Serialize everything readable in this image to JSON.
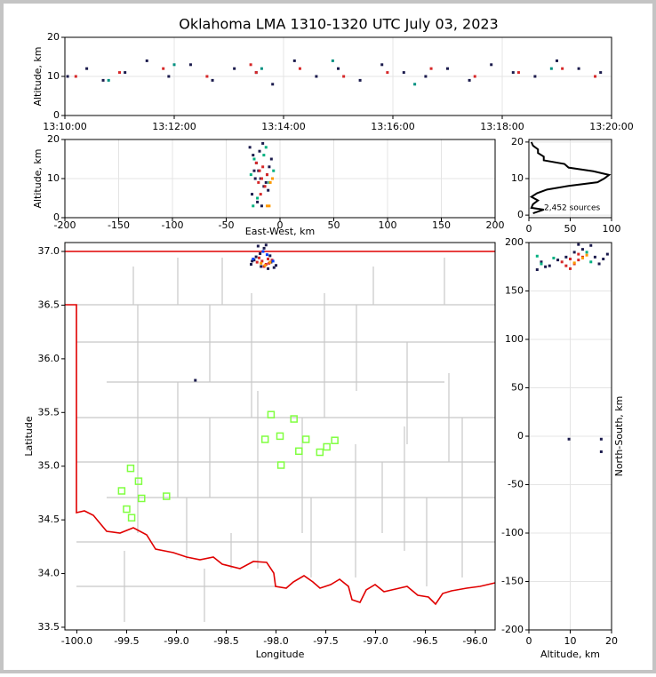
{
  "title": "Oklahoma LMA 1310-1320 UTC July 03, 2023",
  "chart_data": [
    {
      "type": "scatter",
      "ylabel": "Altitude, km",
      "xlim": [
        10,
        20
      ],
      "ylim": [
        0,
        20
      ],
      "grid": true,
      "xticks": [
        {
          "value": 10,
          "label": "13:10:00"
        },
        {
          "value": 12,
          "label": "13:12:00"
        },
        {
          "value": 14,
          "label": "13:14:00"
        },
        {
          "value": 16,
          "label": "13:16:00"
        },
        {
          "value": 18,
          "label": "13:18:00"
        },
        {
          "value": 20,
          "label": "13:20:00"
        }
      ],
      "yticks": [
        0,
        10,
        20
      ],
      "series": [
        {
          "color": "#1b1b4d",
          "x": [
            10.05,
            10.4,
            10.7,
            11.1,
            11.5,
            11.9,
            12.3,
            12.7,
            13.1,
            13.5,
            13.8,
            14.2,
            14.6,
            15.0,
            15.4,
            15.8,
            16.2,
            16.6,
            17.0,
            17.4,
            17.8,
            18.2,
            18.6,
            19.0,
            19.4,
            19.8
          ],
          "y": [
            10,
            12,
            9,
            11,
            14,
            10,
            13,
            9,
            12,
            11,
            8,
            14,
            10,
            12,
            9,
            13,
            11,
            10,
            12,
            9,
            13,
            11,
            10,
            14,
            12,
            11
          ]
        },
        {
          "color": "#d62728",
          "x": [
            10.2,
            11.0,
            11.8,
            12.6,
            13.4,
            13.5,
            14.3,
            15.1,
            15.9,
            16.7,
            17.5,
            18.3,
            19.1,
            19.7
          ],
          "y": [
            10,
            11,
            12,
            10,
            13,
            11,
            12,
            10,
            11,
            12,
            10,
            11,
            12,
            10
          ]
        },
        {
          "color": "#009080",
          "x": [
            10.8,
            12.0,
            13.6,
            14.9,
            16.4,
            18.9
          ],
          "y": [
            9,
            13,
            12,
            14,
            8,
            12
          ]
        }
      ]
    },
    {
      "type": "scatter",
      "xlabel": "East-West, km",
      "ylabel": "Altitude, km",
      "xlim": [
        -200,
        200
      ],
      "ylim": [
        0,
        20
      ],
      "grid": true,
      "xticks": [
        -200,
        -150,
        -100,
        -50,
        0,
        50,
        100,
        150,
        200
      ],
      "yticks": [
        0,
        10,
        20
      ],
      "series": [
        {
          "color": "#1b1b4d",
          "x": [
            -28,
            -25,
            -22,
            -20,
            -18,
            -15,
            -12,
            -10,
            -8,
            -26,
            -21,
            -17,
            -13,
            -24,
            -19,
            -16,
            -11,
            -23
          ],
          "y": [
            18,
            16,
            14,
            12,
            10,
            8,
            11,
            13,
            15,
            6,
            4,
            3,
            9,
            12,
            17,
            19,
            7,
            10
          ]
        },
        {
          "color": "#d62728",
          "x": [
            -22,
            -19,
            -17,
            -14,
            -12,
            -20,
            -16,
            -18
          ],
          "y": [
            14,
            12,
            10,
            8,
            11,
            9,
            13,
            6
          ]
        },
        {
          "color": "#00b080",
          "x": [
            -27,
            -24,
            -21,
            -15,
            -10,
            -6,
            -25,
            -13
          ],
          "y": [
            11,
            15,
            5,
            16,
            9,
            12,
            3,
            18
          ]
        },
        {
          "color": "#ff9900",
          "x": [
            -12,
            -9,
            -7,
            -10
          ],
          "y": [
            3,
            9,
            10,
            3
          ]
        }
      ]
    },
    {
      "type": "line",
      "annotation": "2,452 sources",
      "xlim": [
        0,
        100
      ],
      "ylim": [
        -0.7,
        20.7
      ],
      "grid": true,
      "xticks": [
        0,
        50,
        100
      ],
      "yticks": [
        0,
        10,
        20
      ],
      "series": [
        {
          "color": "#000000",
          "x": [
            5,
            18,
            3,
            5,
            11,
            3,
            10,
            22,
            48,
            83,
            91,
            97,
            78,
            48,
            43,
            18,
            18,
            11,
            11,
            5,
            3
          ],
          "y": [
            0.5,
            1.5,
            2,
            3,
            4,
            5,
            6,
            7,
            8,
            9,
            10,
            11,
            12,
            13,
            14,
            15,
            16,
            17,
            18,
            19,
            20
          ]
        }
      ]
    },
    {
      "type": "scatter",
      "xlabel": "Longitude",
      "ylabel": "Latitude",
      "xlim": [
        -100.12,
        -95.8
      ],
      "ylim": [
        33.475,
        37.083
      ],
      "grid": false,
      "xticks": [
        {
          "value": -100,
          "label": "-100.0"
        },
        -99.5,
        {
          "value": -99,
          "label": "-99.0"
        },
        -98.5,
        {
          "value": -98,
          "label": "-98.0"
        },
        -97.5,
        {
          "value": -97,
          "label": "-97.0"
        },
        -96.5,
        {
          "value": -96,
          "label": "-96.0"
        }
      ],
      "yticks": [
        33.5,
        {
          "value": 34,
          "label": "34.0"
        },
        34.5,
        {
          "value": 35,
          "label": "35.0"
        },
        35.5,
        {
          "value": 36,
          "label": "36.0"
        },
        36.5,
        {
          "value": 37,
          "label": "37.0"
        }
      ],
      "series": [
        {
          "color": "#1b1b4d",
          "x": [
            -98.25,
            -98.22,
            -98.18,
            -98.15,
            -98.12,
            -98.08,
            -98.05,
            -98.02,
            -98.2,
            -98.1,
            -98.0,
            -98.16,
            -98.06,
            -98.24,
            -98.81
          ],
          "y": [
            36.88,
            36.92,
            37.05,
            36.86,
            37.03,
            36.84,
            36.9,
            36.85,
            36.95,
            37.06,
            36.87,
            36.98,
            36.96,
            36.91,
            35.8
          ]
        },
        {
          "color": "#d62728",
          "x": [
            -98.19,
            -98.14,
            -98.1,
            -98.07,
            -98.04,
            -98.17,
            -98.12,
            -98.08
          ],
          "y": [
            36.9,
            36.91,
            36.88,
            36.89,
            36.92,
            36.94,
            36.86,
            36.93
          ]
        },
        {
          "color": "#0040ff",
          "x": [
            -98.23,
            -98.13,
            -98.09,
            -98.03
          ],
          "y": [
            36.93,
            37.0,
            36.97,
            36.91
          ]
        },
        {
          "color": "#ff9900",
          "x": [
            -98.11,
            -98.06,
            -98.15
          ],
          "y": [
            36.87,
            36.9,
            36.89
          ]
        },
        {
          "color": "#80ff40",
          "marker": "square-open",
          "x": [
            -98.05,
            -97.82,
            -98.11,
            -97.96,
            -97.7,
            -97.41,
            -97.77,
            -97.49,
            -97.56,
            -97.95,
            -99.46,
            -99.38,
            -99.55,
            -99.35,
            -99.1,
            -99.5,
            -99.45
          ],
          "y": [
            35.48,
            35.44,
            35.25,
            35.28,
            35.25,
            35.24,
            35.14,
            35.18,
            35.13,
            35.01,
            34.98,
            34.86,
            34.77,
            34.7,
            34.72,
            34.6,
            34.52
          ]
        }
      ]
    },
    {
      "type": "scatter",
      "xlabel": "Altitude, km",
      "ylabel": "North-South, km",
      "xlim": [
        0,
        20
      ],
      "ylim": [
        -200,
        200
      ],
      "grid": true,
      "xticks": [
        0,
        10,
        20
      ],
      "yticks": [
        -200,
        -150,
        -100,
        -50,
        0,
        50,
        100,
        150,
        200
      ],
      "series": [
        {
          "color": "#1b1b4d",
          "x": [
            2,
            3,
            5,
            7,
            9,
            11,
            13,
            15,
            16,
            17,
            18,
            19,
            4,
            12,
            9.7,
            17.5,
            17.5
          ],
          "y": [
            172,
            180,
            176,
            182,
            185,
            190,
            193,
            197,
            185,
            178,
            183,
            188,
            175,
            198,
            -3,
            -3,
            -16
          ]
        },
        {
          "color": "#d62728",
          "x": [
            8,
            9,
            10,
            11,
            12,
            13,
            10,
            12
          ],
          "y": [
            180,
            176,
            183,
            178,
            182,
            185,
            173,
            188
          ]
        },
        {
          "color": "#00b080",
          "x": [
            3,
            6,
            14,
            15,
            2
          ],
          "y": [
            178,
            184,
            190,
            180,
            186
          ]
        },
        {
          "color": "#ff9900",
          "x": [
            13,
            14,
            11
          ],
          "y": [
            184,
            187,
            179
          ]
        }
      ]
    }
  ]
}
